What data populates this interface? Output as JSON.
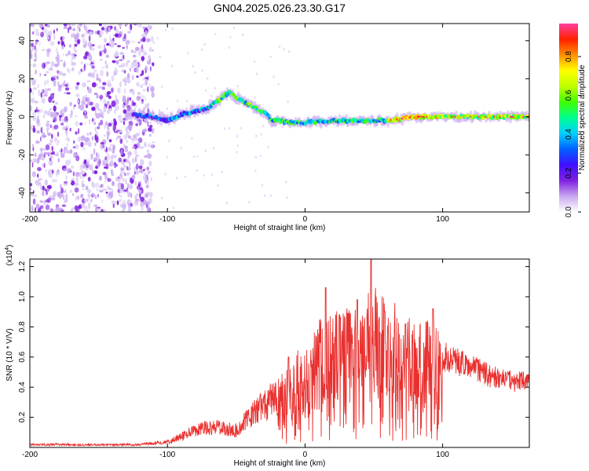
{
  "title": "GN04.2025.026.23.30.G17",
  "chart_data": [
    {
      "type": "heatmap",
      "xlabel": "Height of straight line (km)",
      "ylabel": "Frequency (Hz)",
      "xlim": [
        -200,
        163
      ],
      "ylim": [
        -50,
        49
      ],
      "xticks": [
        -200,
        -100,
        0,
        100
      ],
      "yticks": [
        -40,
        -20,
        0,
        20,
        40
      ],
      "colorbar": {
        "label": "Normalized spectral amplitude",
        "range": [
          0,
          0.97
        ],
        "ticks": [
          "0.0",
          "0.2",
          "0.4",
          "0.6",
          "0.8"
        ],
        "colors": [
          "#ffffff",
          "#c8a8f0",
          "#8020e0",
          "#4010ff",
          "#0060ff",
          "#00d0ff",
          "#00ff90",
          "#40ff00",
          "#c0ff00",
          "#ffff00",
          "#ff9000",
          "#ff2000",
          "#ff40a0"
        ]
      },
      "ridge": {
        "x": [
          -125,
          -110,
          -100,
          -90,
          -80,
          -70,
          -62,
          -55,
          -50,
          -45,
          -40,
          -35,
          -30,
          -27,
          -25,
          -20,
          -10,
          0,
          20,
          40,
          60,
          70,
          80,
          100,
          120,
          140,
          163
        ],
        "y": [
          1,
          0,
          -2,
          1,
          3,
          5,
          9,
          13,
          10,
          8,
          6,
          4,
          2,
          1,
          -2,
          -2,
          -3,
          -3,
          -2,
          -2,
          -2,
          -1,
          0,
          0,
          0,
          0,
          0
        ]
      }
    },
    {
      "type": "line",
      "xlabel": "Height of straight line (km)",
      "ylabel": "SNR (10 * V/V)",
      "scale_label": "(x10",
      "scale_exp": "4",
      "xlim": [
        -200,
        163
      ],
      "ylim": [
        0,
        1.25
      ],
      "xticks": [
        -200,
        -100,
        0,
        100
      ],
      "yticks": [
        "0.2",
        "0.4",
        "0.6",
        "0.8",
        "1.0",
        "1.2"
      ],
      "color": "#e8302e",
      "envelope": {
        "x": [
          -200,
          -150,
          -120,
          -100,
          -90,
          -80,
          -70,
          -60,
          -50,
          -40,
          -30,
          -20,
          -10,
          0,
          10,
          20,
          30,
          40,
          50,
          60,
          70,
          80,
          90,
          100,
          110,
          120,
          130,
          140,
          150,
          163
        ],
        "y": [
          0.02,
          0.02,
          0.02,
          0.04,
          0.08,
          0.12,
          0.14,
          0.14,
          0.12,
          0.22,
          0.3,
          0.36,
          0.45,
          0.55,
          0.66,
          0.7,
          0.72,
          0.75,
          0.82,
          0.78,
          0.72,
          0.68,
          0.66,
          0.62,
          0.58,
          0.55,
          0.5,
          0.47,
          0.45,
          0.44
        ]
      },
      "peaks": [
        {
          "x": -12,
          "y": 0.6
        },
        {
          "x": 15,
          "y": 1.06
        },
        {
          "x": 48,
          "y": 1.25
        },
        {
          "x": 38,
          "y": 0.98
        },
        {
          "x": 58,
          "y": 0.9
        },
        {
          "x": 93,
          "y": 0.92
        },
        {
          "x": 73,
          "y": 0.82
        },
        {
          "x": 25,
          "y": 0.88
        }
      ]
    }
  ]
}
